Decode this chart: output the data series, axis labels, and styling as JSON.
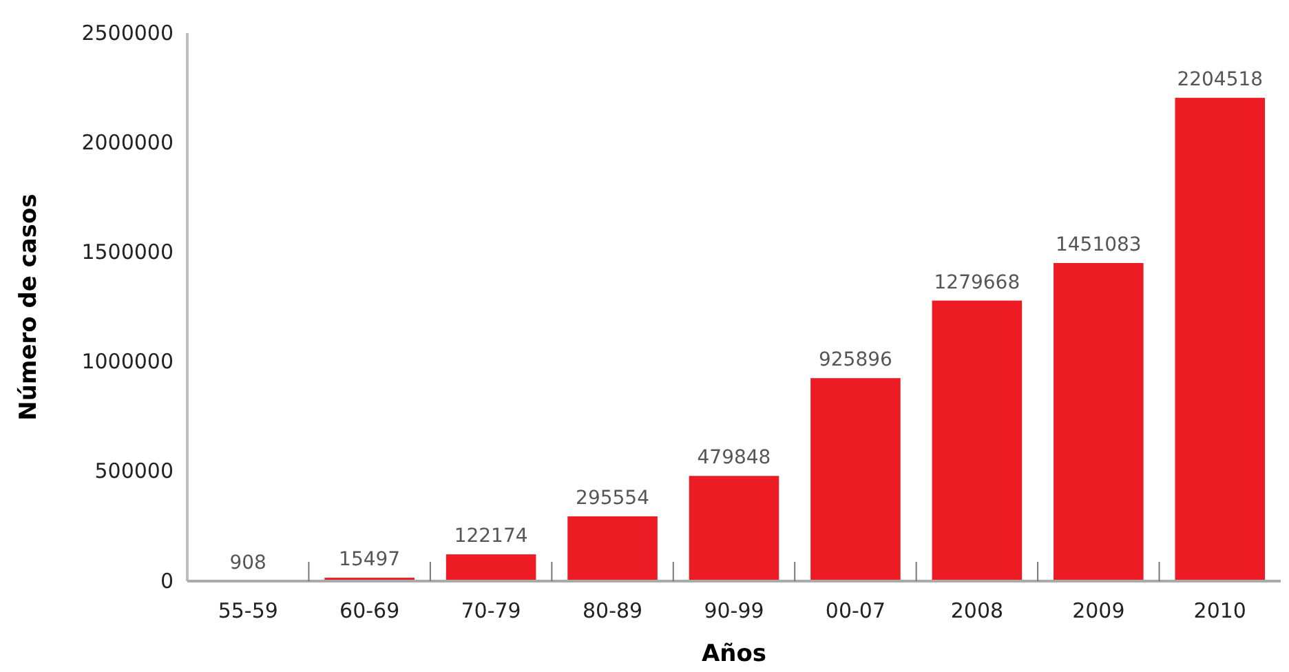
{
  "chart_data": {
    "type": "bar",
    "xlabel": "Años",
    "ylabel": "Número de casos",
    "categories": [
      "55-59",
      "60-69",
      "70-79",
      "80-89",
      "90-99",
      "00-07",
      "2008",
      "2009",
      "2010"
    ],
    "values": [
      908,
      15497,
      122174,
      295554,
      479848,
      925896,
      1279668,
      1451083,
      2204518
    ],
    "color": "#ed1c24",
    "ylim": [
      0,
      2500000
    ],
    "yticks": [
      0,
      500000,
      1000000,
      1500000,
      2000000,
      2500000
    ],
    "data_labels": true
  }
}
